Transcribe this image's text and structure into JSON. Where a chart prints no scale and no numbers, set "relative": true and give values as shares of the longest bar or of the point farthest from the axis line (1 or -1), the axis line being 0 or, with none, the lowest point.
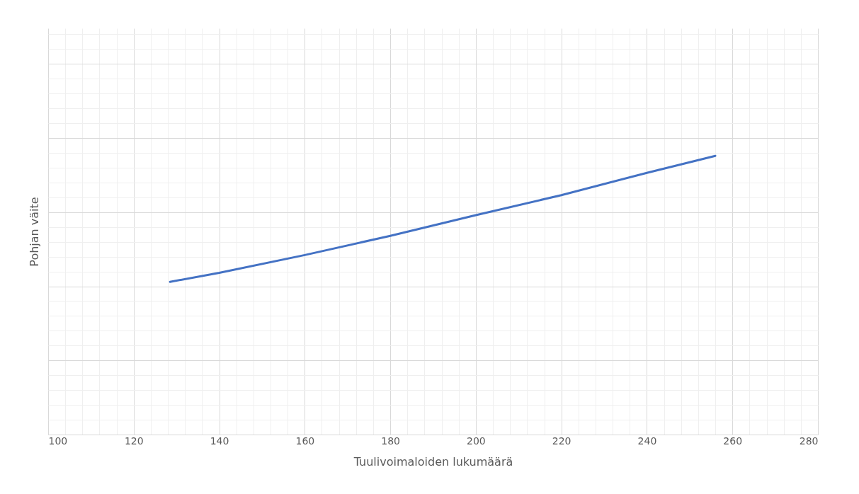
{
  "chart_data": {
    "type": "line",
    "xlabel": "Tuulivoimaloiden lukumäärä",
    "ylabel": "Pohjan väite",
    "relative": true,
    "x": [
      128.5,
      140,
      160,
      180,
      200,
      220,
      240,
      256
    ],
    "series": [
      {
        "color": "#4472c4",
        "values": [
          0.548,
          0.58,
          0.644,
          0.713,
          0.787,
          0.859,
          0.939,
          1
        ]
      }
    ],
    "xlim": [
      100,
      280
    ],
    "xticks": [
      100,
      120,
      140,
      160,
      180,
      200,
      220,
      240,
      260,
      280
    ],
    "grid": true,
    "marker": "none",
    "line_style": "solid"
  }
}
